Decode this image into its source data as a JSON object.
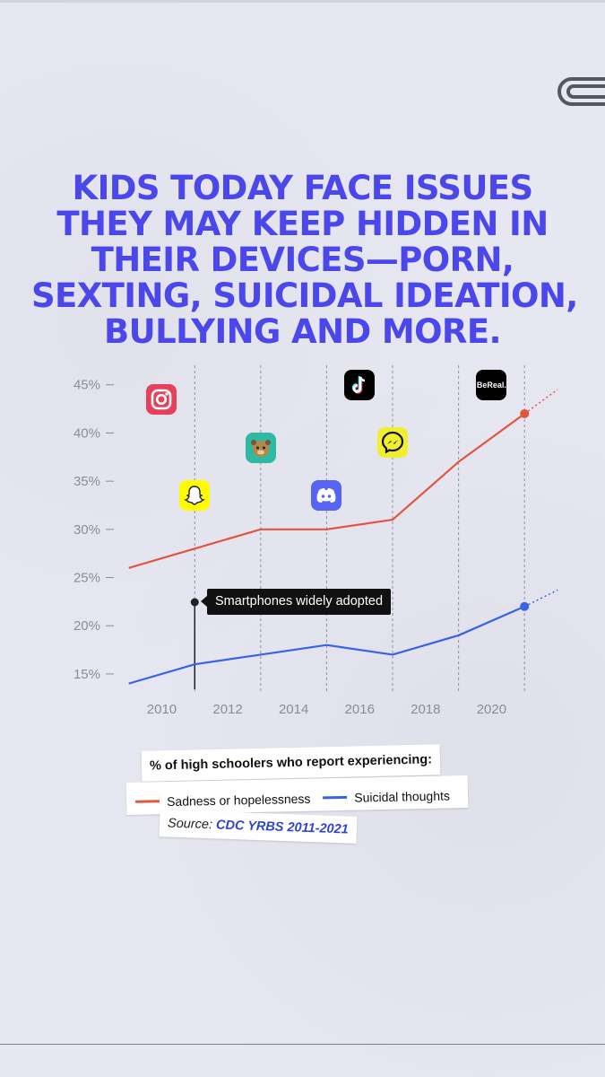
{
  "headline": {
    "lines": [
      "Kids today face issues",
      "they may keep hidden in",
      "their devices—porn,",
      "sexting, suicidal ideation,",
      "bullying and more."
    ],
    "color": "#4b47ea"
  },
  "annotation": {
    "text": "Smartphones widely adopted",
    "year": 2011
  },
  "apps": [
    {
      "name": "instagram-icon",
      "year": 2010,
      "level": 43.5,
      "color": "#e6405a"
    },
    {
      "name": "snapchat-icon",
      "year": 2011,
      "level": 33.5,
      "color": "#fffc00"
    },
    {
      "name": "yubo-icon",
      "year": 2013,
      "level": 38.5,
      "color": "#2fb9a3"
    },
    {
      "name": "discord-icon",
      "year": 2015,
      "level": 33.5,
      "color": "#5865f2"
    },
    {
      "name": "tiktok-icon",
      "year": 2016,
      "level": 45,
      "color": "#000000"
    },
    {
      "name": "messenger-icon",
      "year": 2017,
      "level": 39,
      "color": "#f0ef2e"
    },
    {
      "name": "bereal-icon",
      "year": 2020,
      "level": 45,
      "color": "#000000",
      "label": "BeReal."
    }
  ],
  "legend": {
    "caption": "% of high schoolers who report experiencing:",
    "items": [
      {
        "label": "Sadness or hopelessness",
        "color": "#e2553f"
      },
      {
        "label": "Suicidal thoughts",
        "color": "#3a63e3"
      }
    ]
  },
  "source": {
    "prefix": "Source:",
    "link": "CDC YRBS 2011-2021"
  },
  "chart_data": {
    "type": "line",
    "x_ticks": [
      2010,
      2012,
      2014,
      2016,
      2018,
      2020
    ],
    "y_ticks": [
      "15%",
      "20%",
      "25%",
      "30%",
      "35%",
      "40%",
      "45%"
    ],
    "xlim": [
      2008.9,
      2022
    ],
    "ylim": [
      13.5,
      46
    ],
    "grid_vertical_years": [
      2011,
      2013,
      2015,
      2017,
      2019,
      2021
    ],
    "series": [
      {
        "name": "Sadness or hopelessness",
        "color": "#e2553f",
        "x": [
          2009,
          2011,
          2013,
          2015,
          2017,
          2019,
          2021
        ],
        "y": [
          26,
          28,
          30,
          30,
          31,
          37,
          42
        ],
        "projection": [
          [
            2021,
            42
          ],
          [
            2022,
            44.5
          ]
        ]
      },
      {
        "name": "Suicidal thoughts",
        "color": "#3a63e3",
        "x": [
          2009,
          2011,
          2013,
          2015,
          2017,
          2019,
          2021
        ],
        "y": [
          14,
          16,
          17,
          18,
          17,
          19,
          22
        ],
        "projection": [
          [
            2021,
            22
          ],
          [
            2022,
            23.7
          ]
        ]
      }
    ]
  }
}
